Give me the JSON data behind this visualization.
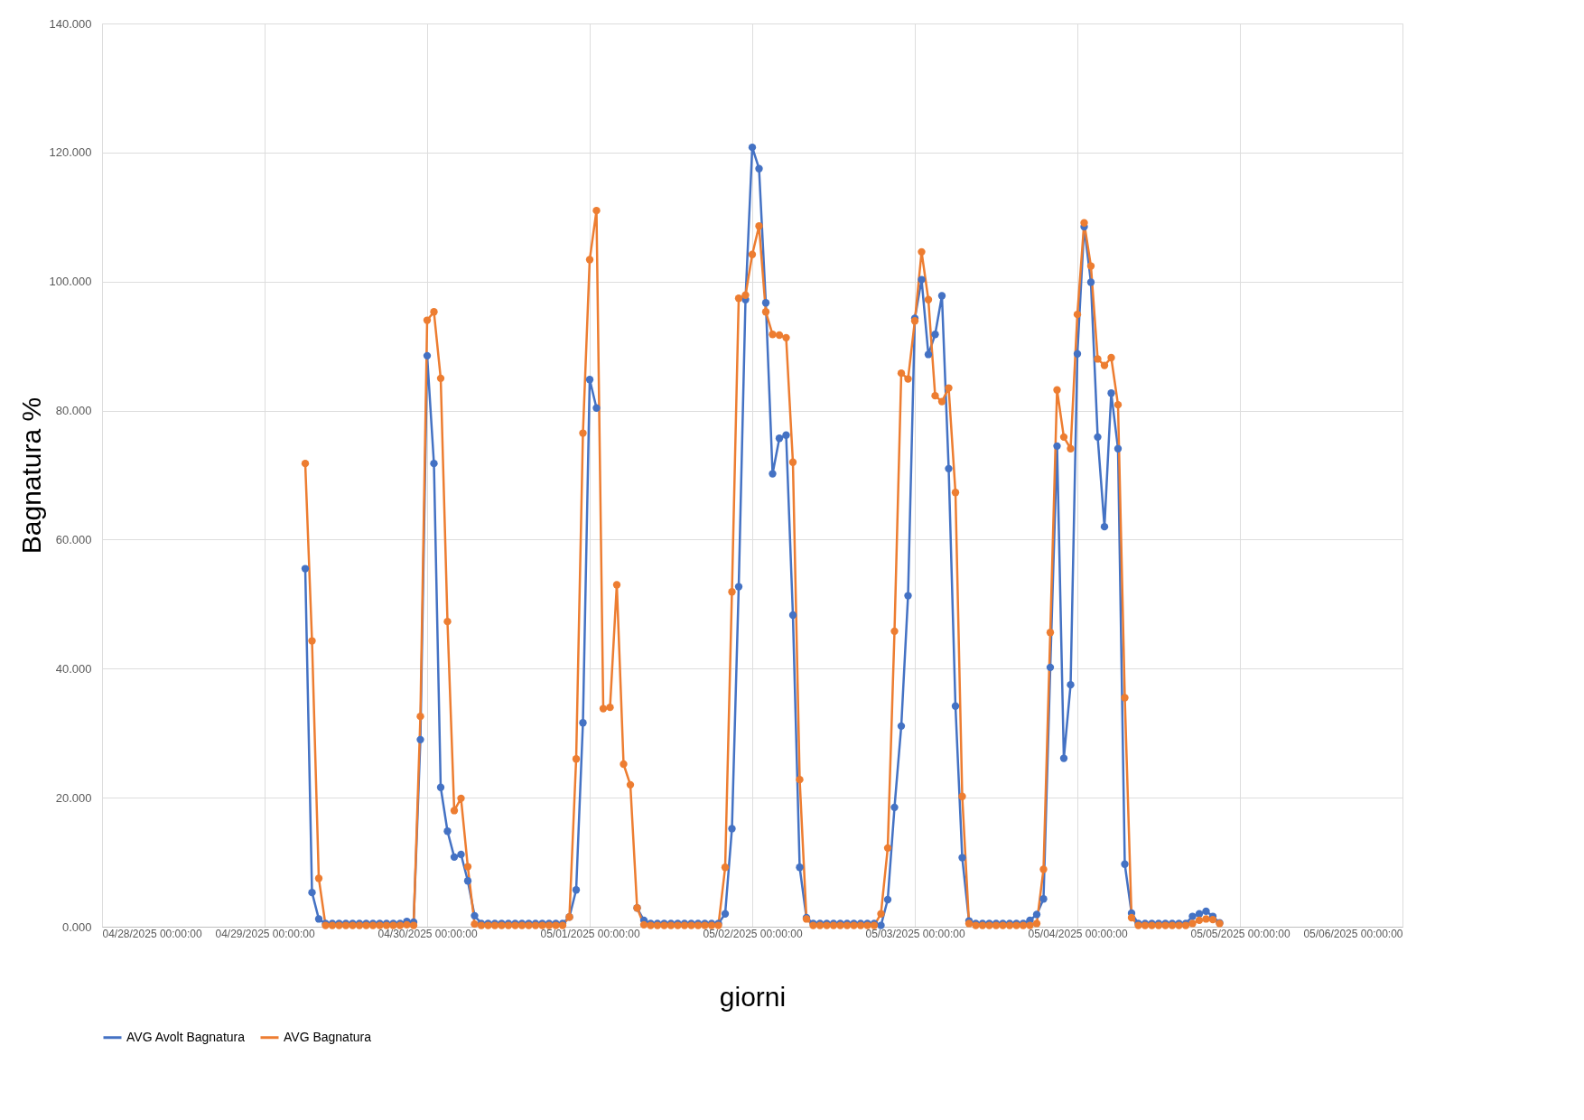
{
  "chart_data": {
    "type": "line",
    "xlabel": "giorni",
    "ylabel": "Bagnatura %",
    "x": [
      "2025-04-29T06:00",
      "2025-04-29T07:00",
      "2025-04-29T08:00",
      "2025-04-29T09:00",
      "2025-04-29T10:00",
      "2025-04-29T11:00",
      "2025-04-29T12:00",
      "2025-04-29T13:00",
      "2025-04-29T14:00",
      "2025-04-29T15:00",
      "2025-04-29T16:00",
      "2025-04-29T17:00",
      "2025-04-29T18:00",
      "2025-04-29T19:00",
      "2025-04-29T20:00",
      "2025-04-29T21:00",
      "2025-04-29T22:00",
      "2025-04-29T23:00",
      "2025-04-30T00:00",
      "2025-04-30T01:00",
      "2025-04-30T02:00",
      "2025-04-30T03:00",
      "2025-04-30T04:00",
      "2025-04-30T05:00",
      "2025-04-30T06:00",
      "2025-04-30T07:00",
      "2025-04-30T08:00",
      "2025-04-30T09:00",
      "2025-04-30T10:00",
      "2025-04-30T11:00",
      "2025-04-30T12:00",
      "2025-04-30T13:00",
      "2025-04-30T14:00",
      "2025-04-30T15:00",
      "2025-04-30T16:00",
      "2025-04-30T17:00",
      "2025-04-30T18:00",
      "2025-04-30T19:00",
      "2025-04-30T20:00",
      "2025-04-30T21:00",
      "2025-04-30T22:00",
      "2025-04-30T23:00",
      "2025-05-01T00:00",
      "2025-05-01T01:00",
      "2025-05-01T02:00",
      "2025-05-01T03:00",
      "2025-05-01T04:00",
      "2025-05-01T05:00",
      "2025-05-01T06:00",
      "2025-05-01T07:00",
      "2025-05-01T08:00",
      "2025-05-01T09:00",
      "2025-05-01T10:00",
      "2025-05-01T11:00",
      "2025-05-01T12:00",
      "2025-05-01T13:00",
      "2025-05-01T14:00",
      "2025-05-01T15:00",
      "2025-05-01T16:00",
      "2025-05-01T17:00",
      "2025-05-01T18:00",
      "2025-05-01T19:00",
      "2025-05-01T20:00",
      "2025-05-01T21:00",
      "2025-05-01T22:00",
      "2025-05-01T23:00",
      "2025-05-02T00:00",
      "2025-05-02T01:00",
      "2025-05-02T02:00",
      "2025-05-02T03:00",
      "2025-05-02T04:00",
      "2025-05-02T05:00",
      "2025-05-02T06:00",
      "2025-05-02T07:00",
      "2025-05-02T08:00",
      "2025-05-02T09:00",
      "2025-05-02T10:00",
      "2025-05-02T11:00",
      "2025-05-02T12:00",
      "2025-05-02T13:00",
      "2025-05-02T14:00",
      "2025-05-02T15:00",
      "2025-05-02T16:00",
      "2025-05-02T17:00",
      "2025-05-02T18:00",
      "2025-05-02T19:00",
      "2025-05-02T20:00",
      "2025-05-02T21:00",
      "2025-05-02T22:00",
      "2025-05-02T23:00",
      "2025-05-03T00:00",
      "2025-05-03T01:00",
      "2025-05-03T02:00",
      "2025-05-03T03:00",
      "2025-05-03T04:00",
      "2025-05-03T05:00",
      "2025-05-03T06:00",
      "2025-05-03T07:00",
      "2025-05-03T08:00",
      "2025-05-03T09:00",
      "2025-05-03T10:00",
      "2025-05-03T11:00",
      "2025-05-03T12:00",
      "2025-05-03T13:00",
      "2025-05-03T14:00",
      "2025-05-03T15:00",
      "2025-05-03T16:00",
      "2025-05-03T17:00",
      "2025-05-03T18:00",
      "2025-05-03T19:00",
      "2025-05-03T20:00",
      "2025-05-03T21:00",
      "2025-05-03T22:00",
      "2025-05-03T23:00",
      "2025-05-04T00:00",
      "2025-05-04T01:00",
      "2025-05-04T02:00",
      "2025-05-04T03:00",
      "2025-05-04T04:00",
      "2025-05-04T05:00",
      "2025-05-04T06:00",
      "2025-05-04T07:00",
      "2025-05-04T08:00",
      "2025-05-04T09:00",
      "2025-05-04T10:00",
      "2025-05-04T11:00",
      "2025-05-04T12:00",
      "2025-05-04T13:00",
      "2025-05-04T14:00",
      "2025-05-04T15:00",
      "2025-05-04T16:00",
      "2025-05-04T17:00",
      "2025-05-04T18:00",
      "2025-05-04T19:00",
      "2025-05-04T20:00",
      "2025-05-04T21:00"
    ],
    "series": [
      {
        "name": "AVG Avolt Bagnatura",
        "color": "#4472c4",
        "values": [
          55.5,
          5.3,
          1.2,
          0.5,
          0.5,
          0.5,
          0.5,
          0.5,
          0.5,
          0.5,
          0.5,
          0.5,
          0.5,
          0.5,
          0.5,
          0.8,
          0.7,
          29.0,
          88.5,
          71.8,
          21.6,
          14.8,
          10.8,
          11.2,
          7.1,
          1.7,
          0.5,
          0.5,
          0.5,
          0.5,
          0.5,
          0.5,
          0.5,
          0.5,
          0.5,
          0.5,
          0.5,
          0.5,
          0.5,
          1.5,
          5.7,
          31.6,
          84.8,
          80.4,
          null,
          null,
          null,
          null,
          null,
          2.9,
          1.0,
          0.5,
          0.5,
          0.5,
          0.5,
          0.5,
          0.5,
          0.5,
          0.5,
          0.5,
          0.5,
          0.5,
          2.0,
          15.2,
          52.7,
          97.2,
          120.8,
          117.5,
          96.7,
          70.2,
          75.7,
          76.2,
          48.3,
          9.2,
          1.4,
          0.5,
          0.5,
          0.5,
          0.5,
          0.5,
          0.5,
          0.5,
          0.5,
          0.5,
          0.5,
          0.2,
          4.2,
          18.5,
          31.1,
          51.3,
          94.3,
          100.3,
          88.7,
          91.8,
          97.8,
          71.0,
          34.2,
          10.7,
          0.9,
          0.5,
          0.5,
          0.5,
          0.5,
          0.5,
          0.5,
          0.5,
          0.5,
          1.0,
          1.9,
          4.3,
          40.2,
          74.5,
          26.1,
          37.5,
          88.8,
          108.5,
          99.9,
          75.9,
          62.0,
          82.7,
          74.1,
          9.7,
          2.1,
          0.5,
          0.5,
          0.5,
          0.5,
          0.5,
          0.5,
          0.5,
          0.5,
          1.6,
          2.0,
          2.4,
          1.6,
          0.6
        ]
      },
      {
        "name": "AVG Bagnatura",
        "color": "#ed7d31",
        "values": [
          71.8,
          44.3,
          7.5,
          0.2,
          0.2,
          0.2,
          0.2,
          0.2,
          0.2,
          0.2,
          0.2,
          0.2,
          0.2,
          0.2,
          0.2,
          0.3,
          0.2,
          32.6,
          94.0,
          95.3,
          85.0,
          47.3,
          18.0,
          19.9,
          9.3,
          0.4,
          0.2,
          0.2,
          0.2,
          0.2,
          0.2,
          0.2,
          0.2,
          0.2,
          0.2,
          0.2,
          0.2,
          0.2,
          0.2,
          1.5,
          26.0,
          76.5,
          103.4,
          111.0,
          33.8,
          34.0,
          53.0,
          25.2,
          22.0,
          2.9,
          0.3,
          0.2,
          0.2,
          0.2,
          0.2,
          0.2,
          0.2,
          0.2,
          0.2,
          0.2,
          0.2,
          0.2,
          9.2,
          51.9,
          97.4,
          97.9,
          104.2,
          108.6,
          95.3,
          91.8,
          91.7,
          91.3,
          72.0,
          22.8,
          1.2,
          0.2,
          0.2,
          0.2,
          0.2,
          0.2,
          0.2,
          0.2,
          0.2,
          0.2,
          0.2,
          2.0,
          12.2,
          45.8,
          85.8,
          84.9,
          93.9,
          104.6,
          97.2,
          82.3,
          81.4,
          83.5,
          67.3,
          20.2,
          0.5,
          0.2,
          0.2,
          0.2,
          0.2,
          0.2,
          0.2,
          0.2,
          0.2,
          0.2,
          0.5,
          8.9,
          45.6,
          83.2,
          75.9,
          74.1,
          94.9,
          109.1,
          102.4,
          88.0,
          87.0,
          88.2,
          80.9,
          35.5,
          1.4,
          0.2,
          0.2,
          0.2,
          0.2,
          0.2,
          0.2,
          0.2,
          0.2,
          0.5,
          1.0,
          1.2,
          1.1,
          0.5
        ]
      }
    ],
    "xlim": [
      "2025-04-28",
      "2025-05-06"
    ],
    "xticks": [
      {
        "value": "2025-04-28",
        "label": "04/28/2025 00:00:00"
      },
      {
        "value": "2025-04-29",
        "label": "04/29/2025 00:00:00"
      },
      {
        "value": "2025-04-30",
        "label": "04/30/2025 00:00:00"
      },
      {
        "value": "2025-05-01",
        "label": "05/01/2025 00:00:00"
      },
      {
        "value": "2025-05-02",
        "label": "05/02/2025 00:00:00"
      },
      {
        "value": "2025-05-03",
        "label": "05/03/2025 00:00:00"
      },
      {
        "value": "2025-05-04",
        "label": "05/04/2025 00:00:00"
      },
      {
        "value": "2025-05-05",
        "label": "05/05/2025 00:00:00"
      },
      {
        "value": "2025-05-06",
        "label": "05/06/2025 00:00:00"
      }
    ],
    "ylim": [
      0,
      140
    ],
    "yticks": [
      {
        "value": 0,
        "label": "0.000"
      },
      {
        "value": 20,
        "label": "20.000"
      },
      {
        "value": 40,
        "label": "40.000"
      },
      {
        "value": 60,
        "label": "60.000"
      },
      {
        "value": 80,
        "label": "80.000"
      },
      {
        "value": 100,
        "label": "100.000"
      },
      {
        "value": 120,
        "label": "120.000"
      },
      {
        "value": 140,
        "label": "140.000"
      }
    ],
    "grid": true,
    "legend": "bottom",
    "marker": "circle",
    "line_style": "solid"
  }
}
